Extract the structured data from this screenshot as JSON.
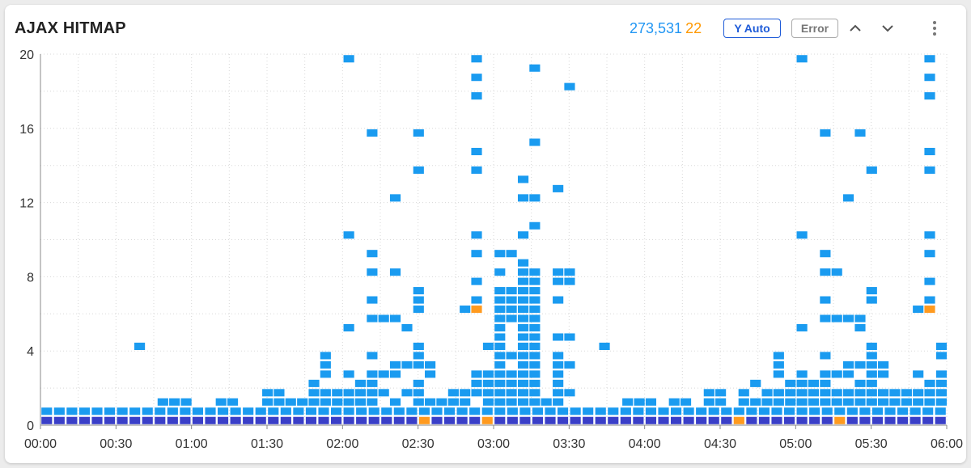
{
  "header": {
    "title": "AJAX HITMAP",
    "total_count": "273,531",
    "error_count": "22",
    "y_auto_label": "Y Auto",
    "error_label": "Error"
  },
  "colors": {
    "normal": "#1a9bf0",
    "dense": "#3a3fc8",
    "error": "#ff9a1f",
    "grid": "#d8d8d8",
    "axis": "#888888"
  },
  "chart_data": {
    "type": "heatmap",
    "title": "AJAX HITMAP",
    "xlabel": "",
    "ylabel": "",
    "x_tick_labels": [
      "00:00",
      "00:30",
      "01:00",
      "01:30",
      "02:00",
      "02:30",
      "03:00",
      "03:30",
      "04:00",
      "04:30",
      "05:00",
      "05:30",
      "06:00"
    ],
    "y_tick_labels": [
      "0",
      "4",
      "8",
      "12",
      "16",
      "20"
    ],
    "x_range_minutes": [
      0,
      360
    ],
    "bucket_minutes": 5,
    "y_range": [
      0,
      20
    ],
    "y_bucket": 0.5,
    "grid": true,
    "bottom_row_columns": 72,
    "bottom_row_error_columns": [
      30,
      35,
      55,
      63
    ],
    "second_row_columns": 72,
    "second_row_error_columns": [],
    "cells": [
      [
        8,
        4.2
      ],
      [
        10,
        1.2
      ],
      [
        11,
        1.2
      ],
      [
        12,
        1.2
      ],
      [
        15,
        1.2
      ],
      [
        16,
        1.2
      ],
      [
        19,
        1.2
      ],
      [
        19,
        1.7
      ],
      [
        20,
        1.2
      ],
      [
        20,
        1.7
      ],
      [
        21,
        1.2
      ],
      [
        22,
        1.2
      ],
      [
        23,
        1.2
      ],
      [
        23,
        1.7
      ],
      [
        23,
        2.2
      ],
      [
        24,
        1.2
      ],
      [
        24,
        1.7
      ],
      [
        24,
        2.7
      ],
      [
        24,
        3.2
      ],
      [
        24,
        3.7
      ],
      [
        25,
        1.2
      ],
      [
        25,
        1.7
      ],
      [
        26,
        1.2
      ],
      [
        26,
        1.7
      ],
      [
        26,
        2.7
      ],
      [
        26,
        5.2
      ],
      [
        26,
        10.2
      ],
      [
        26,
        19.8
      ],
      [
        27,
        1.2
      ],
      [
        27,
        1.7
      ],
      [
        27,
        2.2
      ],
      [
        28,
        1.2
      ],
      [
        28,
        1.7
      ],
      [
        28,
        2.2
      ],
      [
        28,
        2.7
      ],
      [
        28,
        3.7
      ],
      [
        28,
        5.7
      ],
      [
        28,
        6.7
      ],
      [
        28,
        8.2
      ],
      [
        28,
        9.2
      ],
      [
        28,
        15.8
      ],
      [
        29,
        1.7
      ],
      [
        29,
        2.7
      ],
      [
        29,
        5.7
      ],
      [
        30,
        1.2
      ],
      [
        30,
        2.7
      ],
      [
        30,
        3.2
      ],
      [
        30,
        5.7
      ],
      [
        30,
        8.2
      ],
      [
        30,
        12.2
      ],
      [
        31,
        1.7
      ],
      [
        31,
        3.2
      ],
      [
        31,
        5.2
      ],
      [
        32,
        1.2
      ],
      [
        32,
        1.7
      ],
      [
        32,
        2.2
      ],
      [
        32,
        3.2
      ],
      [
        32,
        3.7
      ],
      [
        32,
        4.2
      ],
      [
        32,
        6.2
      ],
      [
        32,
        6.7
      ],
      [
        32,
        7.2
      ],
      [
        32,
        13.8
      ],
      [
        32,
        15.8
      ],
      [
        33,
        1.2
      ],
      [
        33,
        2.7
      ],
      [
        33,
        3.2
      ],
      [
        34,
        1.2
      ],
      [
        35,
        1.2
      ],
      [
        35,
        1.7
      ],
      [
        36,
        1.2
      ],
      [
        36,
        1.7
      ],
      [
        36,
        6.2
      ],
      [
        37,
        1.7
      ],
      [
        37,
        2.2
      ],
      [
        37,
        2.7
      ],
      [
        37,
        6.2,
        "e"
      ],
      [
        37,
        6.7
      ],
      [
        37,
        7.7
      ],
      [
        37,
        9.2
      ],
      [
        37,
        10.2
      ],
      [
        37,
        14.8
      ],
      [
        37,
        13.8
      ],
      [
        37,
        17.8
      ],
      [
        37,
        18.7
      ],
      [
        37,
        19.8
      ],
      [
        38,
        1.2
      ],
      [
        38,
        1.7
      ],
      [
        38,
        2.2
      ],
      [
        38,
        2.7
      ],
      [
        38,
        4.2
      ],
      [
        39,
        1.2
      ],
      [
        39,
        1.7
      ],
      [
        39,
        2.2
      ],
      [
        39,
        2.7
      ],
      [
        39,
        3.2
      ],
      [
        39,
        3.7
      ],
      [
        39,
        4.2
      ],
      [
        39,
        4.7
      ],
      [
        39,
        5.2
      ],
      [
        39,
        5.7
      ],
      [
        39,
        6.2
      ],
      [
        39,
        6.7
      ],
      [
        39,
        7.2
      ],
      [
        39,
        8.2
      ],
      [
        39,
        9.2
      ],
      [
        40,
        1.2
      ],
      [
        40,
        1.7
      ],
      [
        40,
        2.2
      ],
      [
        40,
        2.7
      ],
      [
        40,
        3.7
      ],
      [
        40,
        5.7
      ],
      [
        40,
        6.2
      ],
      [
        40,
        6.7
      ],
      [
        40,
        7.2
      ],
      [
        40,
        9.2
      ],
      [
        41,
        1.2
      ],
      [
        41,
        1.7
      ],
      [
        41,
        2.2
      ],
      [
        41,
        2.7
      ],
      [
        41,
        3.2
      ],
      [
        41,
        3.7
      ],
      [
        41,
        4.2
      ],
      [
        41,
        4.7
      ],
      [
        41,
        5.2
      ],
      [
        41,
        5.7
      ],
      [
        41,
        6.2
      ],
      [
        41,
        6.7
      ],
      [
        41,
        7.2
      ],
      [
        41,
        7.7
      ],
      [
        41,
        8.2
      ],
      [
        41,
        8.7
      ],
      [
        41,
        10.2
      ],
      [
        41,
        12.2
      ],
      [
        41,
        13.2
      ],
      [
        42,
        1.2
      ],
      [
        42,
        1.7
      ],
      [
        42,
        2.2
      ],
      [
        42,
        2.7
      ],
      [
        42,
        3.2
      ],
      [
        42,
        3.7
      ],
      [
        42,
        4.2
      ],
      [
        42,
        4.7
      ],
      [
        42,
        5.2
      ],
      [
        42,
        5.7
      ],
      [
        42,
        6.2
      ],
      [
        42,
        6.7
      ],
      [
        42,
        7.2
      ],
      [
        42,
        7.7
      ],
      [
        42,
        8.2
      ],
      [
        42,
        10.7
      ],
      [
        42,
        12.2
      ],
      [
        42,
        15.3
      ],
      [
        42,
        19.2
      ],
      [
        43,
        1.2
      ],
      [
        44,
        1.2
      ],
      [
        44,
        1.7
      ],
      [
        44,
        2.2
      ],
      [
        44,
        2.7
      ],
      [
        44,
        3.2
      ],
      [
        44,
        3.7
      ],
      [
        44,
        4.7
      ],
      [
        44,
        6.7
      ],
      [
        44,
        7.7
      ],
      [
        44,
        8.2
      ],
      [
        44,
        12.7
      ],
      [
        45,
        1.7
      ],
      [
        45,
        3.2
      ],
      [
        45,
        4.7
      ],
      [
        45,
        7.7
      ],
      [
        45,
        8.2
      ],
      [
        45,
        18.2
      ],
      [
        48,
        4.2
      ],
      [
        50,
        1.2
      ],
      [
        51,
        1.2
      ],
      [
        52,
        1.2
      ],
      [
        54,
        1.2
      ],
      [
        55,
        1.2
      ],
      [
        57,
        1.2
      ],
      [
        57,
        1.7
      ],
      [
        58,
        1.2
      ],
      [
        58,
        1.7
      ],
      [
        60,
        1.2
      ],
      [
        60,
        1.7
      ],
      [
        61,
        1.2
      ],
      [
        61,
        2.2
      ],
      [
        62,
        1.2
      ],
      [
        62,
        1.7
      ],
      [
        63,
        1.2
      ],
      [
        63,
        1.7
      ],
      [
        63,
        2.7
      ],
      [
        63,
        3.2
      ],
      [
        63,
        3.7
      ],
      [
        64,
        1.2
      ],
      [
        64,
        1.7
      ],
      [
        64,
        2.2
      ],
      [
        65,
        1.2
      ],
      [
        65,
        1.7
      ],
      [
        65,
        2.2
      ],
      [
        65,
        2.7
      ],
      [
        65,
        5.2
      ],
      [
        65,
        10.2
      ],
      [
        65,
        19.8
      ],
      [
        66,
        1.2
      ],
      [
        66,
        1.7
      ],
      [
        66,
        2.2
      ],
      [
        67,
        1.2
      ],
      [
        67,
        1.7
      ],
      [
        67,
        2.2
      ],
      [
        67,
        2.7
      ],
      [
        67,
        3.7
      ],
      [
        67,
        5.7
      ],
      [
        67,
        6.7
      ],
      [
        67,
        8.2
      ],
      [
        67,
        9.2
      ],
      [
        67,
        15.8
      ],
      [
        68,
        1.2
      ],
      [
        68,
        1.7
      ],
      [
        68,
        2.7
      ],
      [
        68,
        5.7
      ],
      [
        68,
        8.2
      ],
      [
        69,
        1.2
      ],
      [
        69,
        1.7
      ],
      [
        69,
        2.7
      ],
      [
        69,
        3.2
      ],
      [
        69,
        5.7
      ],
      [
        69,
        12.2
      ],
      [
        70,
        1.2
      ],
      [
        70,
        1.7
      ],
      [
        70,
        2.2
      ],
      [
        70,
        3.2
      ],
      [
        70,
        5.2
      ],
      [
        70,
        5.7
      ],
      [
        70,
        15.8
      ],
      [
        71,
        1.2
      ],
      [
        71,
        1.7
      ],
      [
        71,
        2.2
      ],
      [
        71,
        2.7
      ],
      [
        71,
        3.2
      ],
      [
        71,
        3.7
      ],
      [
        71,
        4.2
      ],
      [
        71,
        6.7
      ],
      [
        71,
        7.2
      ],
      [
        71,
        13.8
      ],
      [
        72,
        1.2
      ],
      [
        72,
        1.7
      ],
      [
        72,
        2.7
      ],
      [
        72,
        3.2
      ],
      [
        73,
        1.2
      ],
      [
        73,
        1.7
      ],
      [
        74,
        1.2
      ],
      [
        74,
        1.7
      ],
      [
        75,
        1.2
      ],
      [
        75,
        1.7
      ],
      [
        75,
        2.7
      ],
      [
        75,
        6.2
      ],
      [
        76,
        1.2
      ],
      [
        76,
        1.7
      ],
      [
        76,
        2.2
      ],
      [
        76,
        6.2,
        "e"
      ],
      [
        76,
        6.7
      ],
      [
        76,
        7.7
      ],
      [
        76,
        9.2
      ],
      [
        76,
        10.2
      ],
      [
        76,
        13.8
      ],
      [
        76,
        14.8
      ],
      [
        76,
        17.8
      ],
      [
        76,
        18.7
      ],
      [
        76,
        19.8
      ],
      [
        77,
        1.2
      ],
      [
        77,
        1.7
      ],
      [
        77,
        2.2
      ],
      [
        77,
        2.7
      ],
      [
        77,
        3.7
      ],
      [
        77,
        4.2
      ]
    ]
  }
}
